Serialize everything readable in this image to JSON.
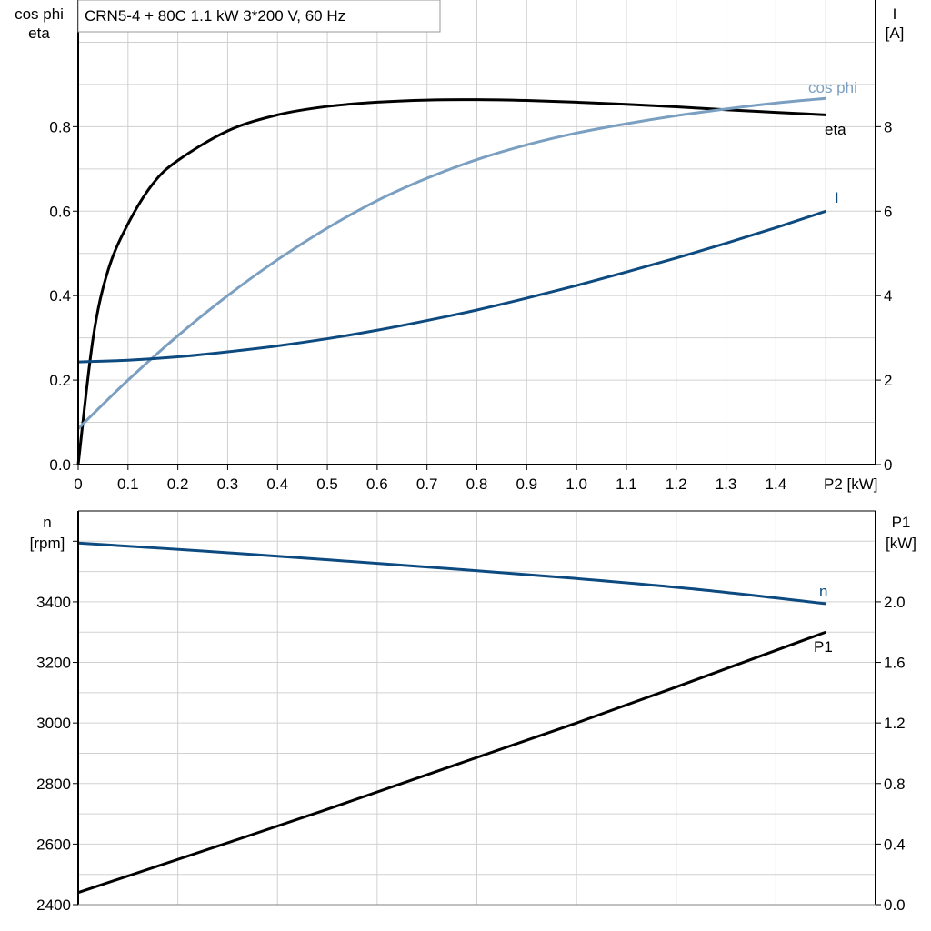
{
  "title": "CRN5-4 + 80C   1.1 kW   3*200 V, 60 Hz",
  "colors": {
    "eta": "#000000",
    "cos_phi": "#7a9fc0",
    "I": "#0d4a80",
    "n": "#0d4a80",
    "P1": "#000000",
    "grid": "#d0d0d0"
  },
  "chart_data": [
    {
      "type": "line",
      "xlabel": "P2 [kW]",
      "xlim": [
        0,
        1.6
      ],
      "x_ticks": [
        "0",
        "0.1",
        "0.2",
        "0.3",
        "0.4",
        "0.5",
        "0.6",
        "0.7",
        "0.8",
        "0.9",
        "1.0",
        "1.1",
        "1.2",
        "1.3",
        "1.4"
      ],
      "ylabel_left": [
        "cos phi",
        "eta"
      ],
      "ylim_left": [
        0,
        1.1
      ],
      "y_ticks_left": [
        "0.0",
        "0.2",
        "0.4",
        "0.6",
        "0.8"
      ],
      "ylabel_right": [
        "I",
        "[A]"
      ],
      "ylim_right": [
        0,
        11
      ],
      "y_ticks_right": [
        "0",
        "2",
        "4",
        "6",
        "8"
      ],
      "grid": true,
      "series": [
        {
          "name": "eta",
          "axis": "left",
          "x": [
            0,
            0.03,
            0.06,
            0.1,
            0.15,
            0.2,
            0.3,
            0.4,
            0.5,
            0.6,
            0.7,
            0.8,
            0.9,
            1.0,
            1.1,
            1.2,
            1.3,
            1.4,
            1.5
          ],
          "y": [
            0,
            0.3,
            0.46,
            0.57,
            0.665,
            0.72,
            0.79,
            0.828,
            0.848,
            0.858,
            0.863,
            0.864,
            0.862,
            0.858,
            0.853,
            0.847,
            0.84,
            0.834,
            0.828
          ]
        },
        {
          "name": "cos phi",
          "axis": "left",
          "x": [
            0,
            0.1,
            0.2,
            0.3,
            0.4,
            0.5,
            0.6,
            0.7,
            0.8,
            0.9,
            1.0,
            1.1,
            1.2,
            1.3,
            1.4,
            1.5
          ],
          "y": [
            0.085,
            0.2,
            0.305,
            0.4,
            0.485,
            0.56,
            0.625,
            0.678,
            0.722,
            0.757,
            0.785,
            0.807,
            0.826,
            0.842,
            0.856,
            0.867
          ]
        },
        {
          "name": "I",
          "axis": "right",
          "x": [
            0,
            0.1,
            0.2,
            0.3,
            0.4,
            0.5,
            0.6,
            0.7,
            0.8,
            0.9,
            1.0,
            1.1,
            1.2,
            1.3,
            1.4,
            1.5
          ],
          "y": [
            2.43,
            2.47,
            2.55,
            2.67,
            2.81,
            2.98,
            3.18,
            3.41,
            3.66,
            3.94,
            4.24,
            4.56,
            4.89,
            5.24,
            5.61,
            6.0
          ]
        }
      ]
    },
    {
      "type": "line",
      "xlim": [
        0,
        1.6
      ],
      "ylabel_left": [
        "n",
        "[rpm]"
      ],
      "ylim_left": [
        2400,
        3700
      ],
      "y_ticks_left": [
        "2400",
        "2600",
        "2800",
        "3000",
        "3200",
        "3400"
      ],
      "ylabel_right": [
        "P1",
        "[kW]"
      ],
      "ylim_right": [
        0,
        2.6
      ],
      "y_ticks_right": [
        "0.0",
        "0.4",
        "0.8",
        "1.2",
        "1.6",
        "2.0"
      ],
      "grid": true,
      "series": [
        {
          "name": "n",
          "axis": "left",
          "x": [
            0,
            0.25,
            0.5,
            0.75,
            1.0,
            1.25,
            1.5
          ],
          "y": [
            3594,
            3568,
            3539,
            3509,
            3477,
            3440,
            3394
          ]
        },
        {
          "name": "P1",
          "axis": "right",
          "x": [
            0,
            0.5,
            1.0,
            1.5
          ],
          "y": [
            0.08,
            0.63,
            1.2,
            1.8
          ]
        }
      ]
    }
  ]
}
